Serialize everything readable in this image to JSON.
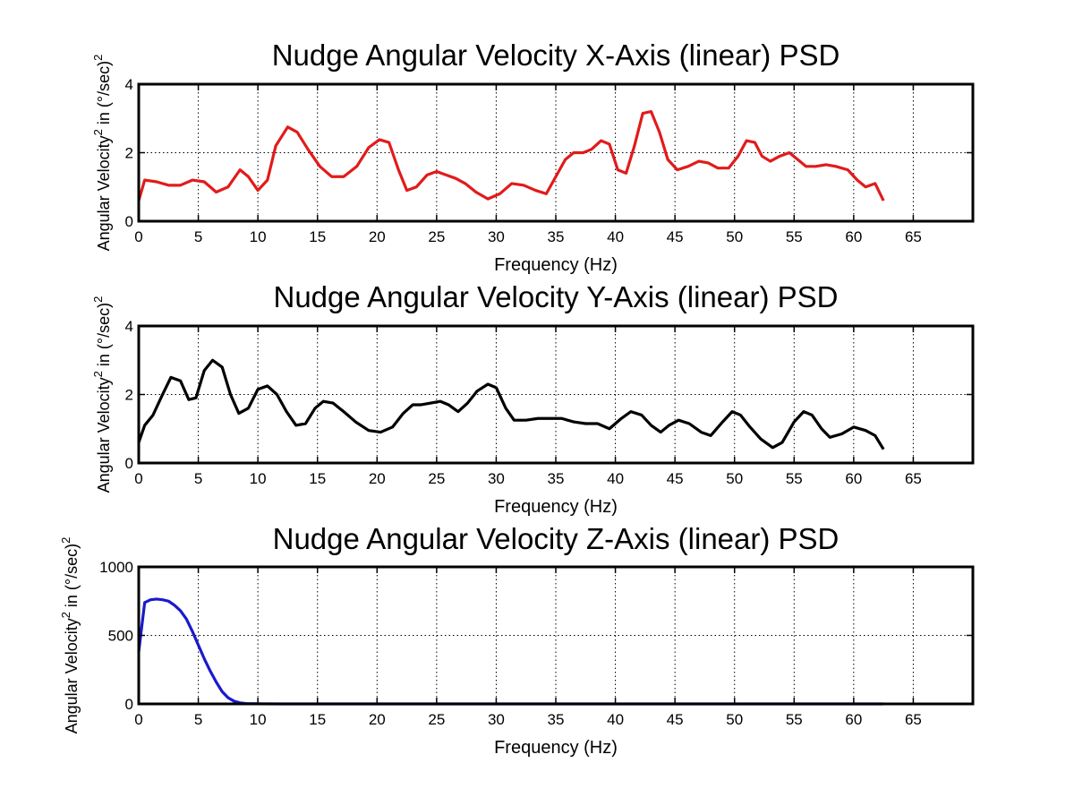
{
  "chart_data": [
    {
      "type": "line",
      "title": "Nudge Angular Velocity X-Axis (linear) PSD",
      "xlabel": "Frequency (Hz)",
      "ylabel": {
        "pre": "Angular Velocity",
        "sup1": "2",
        "mid": " in (°/sec)",
        "sup2": "2"
      },
      "xlim": [
        0,
        70
      ],
      "ylim": [
        0,
        4
      ],
      "xticks": [
        "0",
        "5",
        "10",
        "15",
        "20",
        "25",
        "30",
        "35",
        "40",
        "45",
        "50",
        "55",
        "60",
        "65"
      ],
      "yticks": [
        "0",
        "2",
        "4"
      ],
      "grid": true,
      "color": "#e11b1b",
      "series": [
        {
          "x": [
            0,
            0.5,
            1.5,
            2.5,
            3.5,
            4.5,
            5.5,
            6.5,
            7.5,
            8.5,
            9.2,
            10,
            10.8,
            11.5,
            12.5,
            13.3,
            14.2,
            15.2,
            16.2,
            17.2,
            18.3,
            19.3,
            20.2,
            21,
            21.8,
            22.5,
            23.3,
            24.2,
            25,
            25.8,
            26.6,
            27.4,
            28.3,
            29.3,
            30.3,
            31.3,
            32.3,
            33.3,
            34.2,
            35,
            35.8,
            36.5,
            37.3,
            38,
            38.8,
            39.5,
            40.2,
            40.9,
            41.6,
            42.3,
            43,
            43.7,
            44.4,
            45.2,
            46.1,
            47,
            47.8,
            48.6,
            49.5,
            50.3,
            51,
            51.7,
            52.3,
            53,
            53.8,
            54.6,
            55.3,
            56,
            56.8,
            57.7,
            58.5,
            59.5,
            60.3,
            61,
            61.8,
            62.5
          ],
          "y": [
            0.6,
            1.2,
            1.15,
            1.05,
            1.05,
            1.2,
            1.15,
            0.85,
            1.0,
            1.5,
            1.3,
            0.9,
            1.2,
            2.2,
            2.75,
            2.6,
            2.1,
            1.6,
            1.3,
            1.3,
            1.6,
            2.15,
            2.38,
            2.3,
            1.5,
            0.9,
            1.0,
            1.35,
            1.45,
            1.35,
            1.25,
            1.1,
            0.85,
            0.65,
            0.8,
            1.1,
            1.05,
            0.9,
            0.8,
            1.3,
            1.8,
            2.0,
            2.0,
            2.1,
            2.35,
            2.25,
            1.5,
            1.4,
            2.2,
            3.15,
            3.2,
            2.6,
            1.8,
            1.5,
            1.6,
            1.75,
            1.7,
            1.55,
            1.55,
            1.9,
            2.35,
            2.3,
            1.9,
            1.75,
            1.9,
            2.0,
            1.8,
            1.6,
            1.6,
            1.65,
            1.6,
            1.5,
            1.2,
            1.0,
            1.1,
            0.6
          ]
        }
      ]
    },
    {
      "type": "line",
      "title": "Nudge Angular Velocity Y-Axis (linear) PSD",
      "xlabel": "Frequency (Hz)",
      "ylabel": {
        "pre": "Angular Velocity",
        "sup1": "2",
        "mid": " in (°/sec)",
        "sup2": "2"
      },
      "xlim": [
        0,
        70
      ],
      "ylim": [
        0,
        4
      ],
      "xticks": [
        "0",
        "5",
        "10",
        "15",
        "20",
        "25",
        "30",
        "35",
        "40",
        "45",
        "50",
        "55",
        "60",
        "65"
      ],
      "yticks": [
        "0",
        "2",
        "4"
      ],
      "grid": true,
      "color": "#000000",
      "series": [
        {
          "x": [
            0,
            0.5,
            1.2,
            2,
            2.7,
            3.5,
            4.2,
            4.8,
            5.5,
            6.2,
            7,
            7.7,
            8.4,
            9.2,
            10,
            10.8,
            11.6,
            12.4,
            13.2,
            14,
            14.8,
            15.5,
            16.3,
            17.2,
            18.2,
            19.3,
            20.3,
            21.3,
            22.2,
            23,
            23.7,
            24.5,
            25.3,
            26,
            26.8,
            27.6,
            28.4,
            29.3,
            30,
            30.8,
            31.5,
            32.5,
            33.5,
            34.5,
            35.5,
            36.5,
            37.5,
            38.5,
            39.5,
            40.5,
            41.3,
            42.2,
            43,
            43.8,
            44.5,
            45.3,
            46.2,
            47.2,
            48,
            49,
            49.8,
            50.5,
            51.3,
            52.2,
            53.2,
            54,
            55,
            55.8,
            56.5,
            57.3,
            58,
            59,
            60,
            61,
            61.8,
            62.5
          ],
          "y": [
            0.6,
            1.1,
            1.4,
            2.0,
            2.5,
            2.4,
            1.85,
            1.9,
            2.7,
            3.0,
            2.8,
            2.0,
            1.45,
            1.6,
            2.15,
            2.25,
            2.0,
            1.5,
            1.1,
            1.15,
            1.6,
            1.8,
            1.75,
            1.5,
            1.2,
            0.95,
            0.9,
            1.05,
            1.45,
            1.7,
            1.7,
            1.75,
            1.8,
            1.7,
            1.5,
            1.75,
            2.1,
            2.3,
            2.2,
            1.6,
            1.25,
            1.25,
            1.3,
            1.3,
            1.3,
            1.2,
            1.15,
            1.15,
            1.0,
            1.3,
            1.5,
            1.4,
            1.1,
            0.9,
            1.1,
            1.25,
            1.15,
            0.9,
            0.8,
            1.2,
            1.5,
            1.4,
            1.05,
            0.7,
            0.45,
            0.6,
            1.2,
            1.5,
            1.4,
            1.0,
            0.75,
            0.85,
            1.05,
            0.95,
            0.8,
            0.4
          ]
        }
      ]
    },
    {
      "type": "line",
      "title": "Nudge Angular Velocity Z-Axis (linear) PSD",
      "xlabel": "Frequency (Hz)",
      "ylabel": {
        "pre": "Angular Velocity",
        "sup1": "2",
        "mid": " in (°/sec)",
        "sup2": "2"
      },
      "xlim": [
        0,
        70
      ],
      "ylim": [
        0,
        1000
      ],
      "xticks": [
        "0",
        "5",
        "10",
        "15",
        "20",
        "25",
        "30",
        "35",
        "40",
        "45",
        "50",
        "55",
        "60",
        "65"
      ],
      "yticks": [
        "0",
        "500",
        "1000"
      ],
      "grid": true,
      "color": "#1a1acc",
      "series": [
        {
          "x": [
            0,
            0.5,
            1,
            1.5,
            2,
            2.5,
            3,
            3.5,
            4,
            4.5,
            5,
            5.5,
            6,
            6.5,
            7,
            7.5,
            8,
            8.5,
            9,
            10,
            12,
            15,
            20,
            30,
            40,
            50,
            60,
            62.5
          ],
          "y": [
            380,
            740,
            760,
            765,
            760,
            750,
            720,
            680,
            620,
            530,
            430,
            330,
            240,
            160,
            90,
            45,
            20,
            8,
            3,
            1,
            0,
            0,
            0,
            0,
            0,
            0,
            0,
            0
          ]
        }
      ]
    }
  ]
}
